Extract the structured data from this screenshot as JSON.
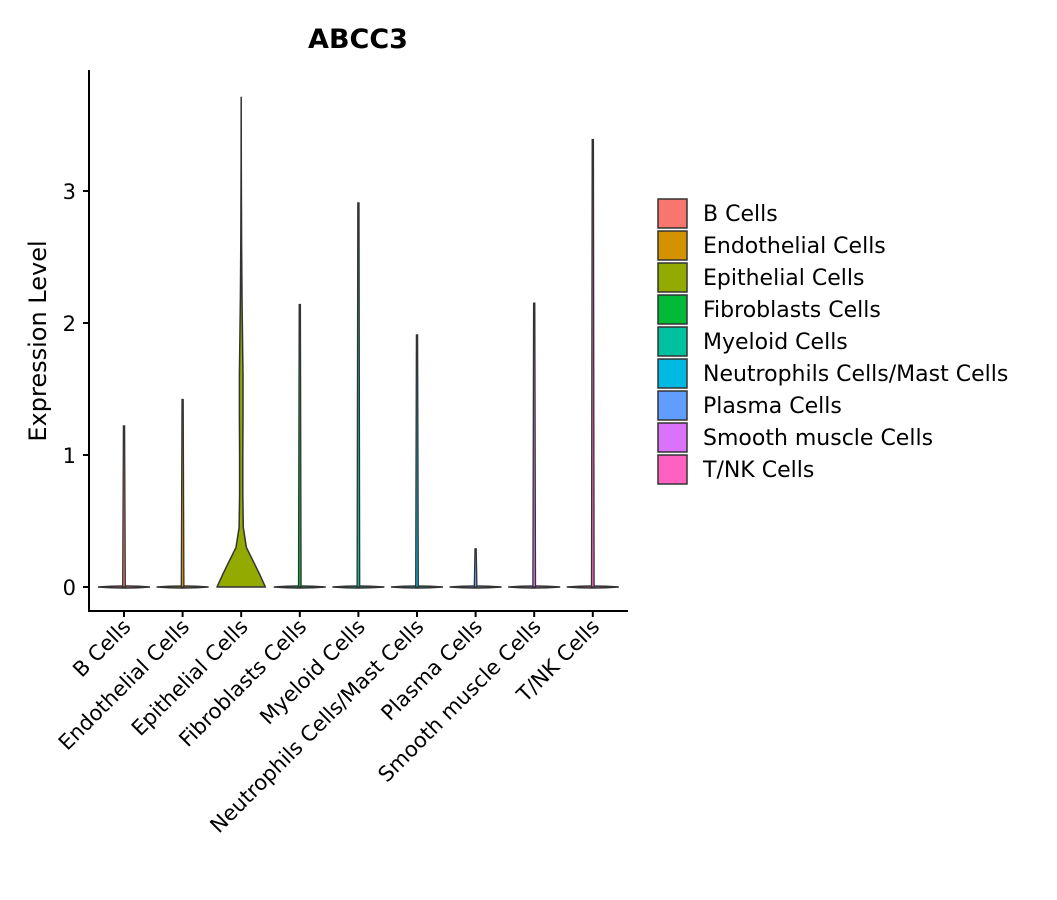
{
  "chart_data": {
    "type": "violin",
    "title": "ABCC3",
    "xlabel": "",
    "ylabel": "Expression Level",
    "ylim": [
      -0.18,
      3.9
    ],
    "yticks": [
      0,
      1,
      2,
      3
    ],
    "legend_position": "right",
    "categories": [
      "B Cells",
      "Endothelial Cells",
      "Epithelial Cells",
      "Fibroblasts Cells",
      "Myeloid Cells",
      "Neutrophils Cells/Mast Cells",
      "Plasma Cells",
      "Smooth muscle Cells",
      "T/NK Cells"
    ],
    "colors": [
      "#F8766D",
      "#D39200",
      "#93AA00",
      "#00BA38",
      "#00C19F",
      "#00B9E3",
      "#619CFF",
      "#DB72FB",
      "#FF61C3"
    ],
    "max_values": [
      1.22,
      1.42,
      3.71,
      2.14,
      2.91,
      1.91,
      0.29,
      2.15,
      3.39
    ],
    "median_values": [
      0,
      0,
      0,
      0,
      0,
      0,
      0,
      0,
      0
    ],
    "epithelial_density_profile": [
      {
        "y": 0.0,
        "width": 0.93
      },
      {
        "y": 0.1,
        "width": 0.7
      },
      {
        "y": 0.2,
        "width": 0.45
      },
      {
        "y": 0.3,
        "width": 0.2
      },
      {
        "y": 0.45,
        "width": 0.08
      },
      {
        "y": 0.7,
        "width": 0.06
      },
      {
        "y": 1.0,
        "width": 0.06
      },
      {
        "y": 1.3,
        "width": 0.07
      },
      {
        "y": 1.6,
        "width": 0.07
      },
      {
        "y": 1.9,
        "width": 0.05
      },
      {
        "y": 2.2,
        "width": 0.03
      },
      {
        "y": 2.6,
        "width": 0.015
      },
      {
        "y": 3.2,
        "width": 0.005
      },
      {
        "y": 3.71,
        "width": 0.0
      }
    ]
  }
}
